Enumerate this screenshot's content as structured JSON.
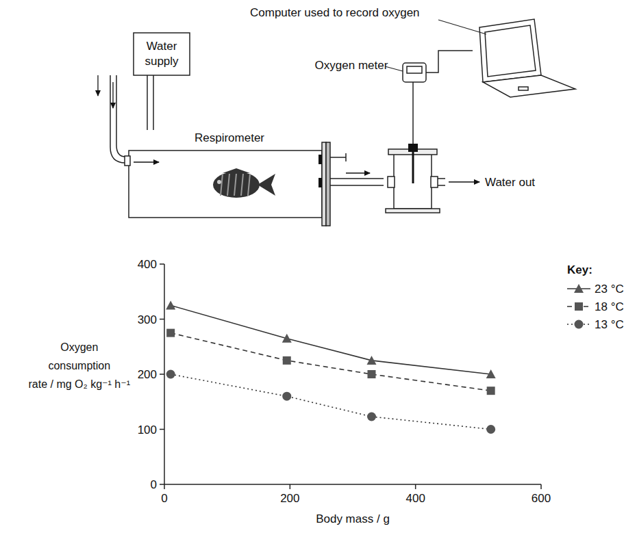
{
  "diagram": {
    "labels": {
      "computer": "Computer used to record oxygen",
      "water_supply": "Water supply",
      "oxygen_meter": "Oxygen meter",
      "respirometer": "Respirometer",
      "water_out": "Water out"
    }
  },
  "chart_data": {
    "type": "line",
    "x_label": "Body mass / g",
    "y_label": "Oxygen consumption rate / mg O₂ kg⁻¹ h⁻¹",
    "legend_title": "Key:",
    "x": [
      10,
      195,
      330,
      520
    ],
    "series": [
      {
        "name": "23 °C",
        "color": "#555555",
        "marker": "triangle",
        "line_style": "solid",
        "values": [
          325,
          265,
          225,
          200
        ]
      },
      {
        "name": "18 °C",
        "color": "#555555",
        "marker": "square",
        "line_style": "dashed",
        "values": [
          275,
          225,
          200,
          170
        ]
      },
      {
        "name": "13 °C",
        "color": "#555555",
        "marker": "circle",
        "line_style": "dotted",
        "values": [
          200,
          160,
          123,
          100
        ]
      }
    ],
    "xlim": [
      0,
      600
    ],
    "xticks": [
      0,
      200,
      400,
      600
    ],
    "ylim": [
      0,
      400
    ],
    "yticks": [
      0,
      100,
      200,
      300,
      400
    ],
    "grid": false,
    "legend": "right"
  }
}
